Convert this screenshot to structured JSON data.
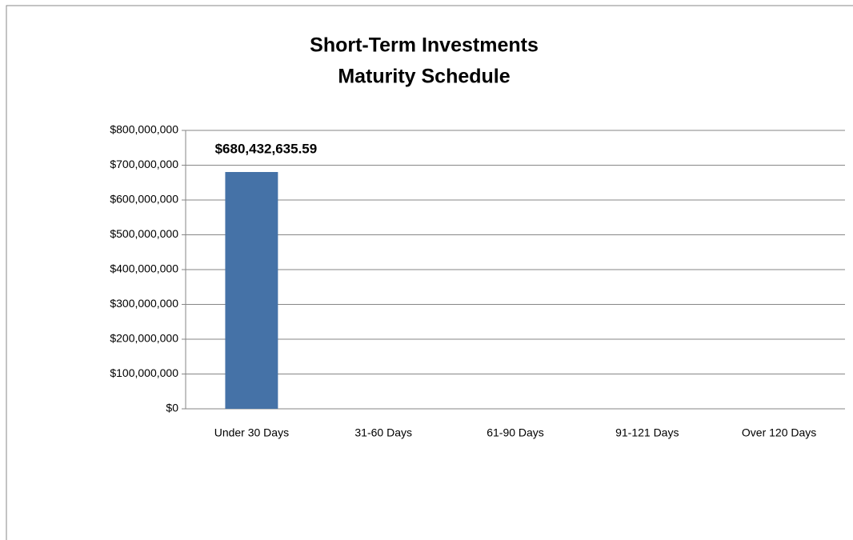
{
  "chart_data": {
    "type": "bar",
    "title": [
      "Short-Term Investments",
      "Maturity Schedule"
    ],
    "categories": [
      "Under 30 Days",
      "31-60 Days",
      "61-90 Days",
      "91-121 Days",
      "Over 120 Days"
    ],
    "values": [
      680432635.59,
      null,
      null,
      null,
      null
    ],
    "value_labels": [
      "$680,432,635.59",
      null,
      null,
      null,
      null
    ],
    "color": "#4572a7",
    "ylim": [
      0,
      800000000
    ],
    "yticks": [
      {
        "value": 0,
        "label": "$0"
      },
      {
        "value": 100000000,
        "label": "$100,000,000"
      },
      {
        "value": 200000000,
        "label": "$200,000,000"
      },
      {
        "value": 300000000,
        "label": "$300,000,000"
      },
      {
        "value": 400000000,
        "label": "$400,000,000"
      },
      {
        "value": 500000000,
        "label": "$500,000,000"
      },
      {
        "value": 600000000,
        "label": "$600,000,000"
      },
      {
        "value": 700000000,
        "label": "$700,000,000"
      },
      {
        "value": 800000000,
        "label": "$800,000,000"
      }
    ],
    "grid": true
  }
}
